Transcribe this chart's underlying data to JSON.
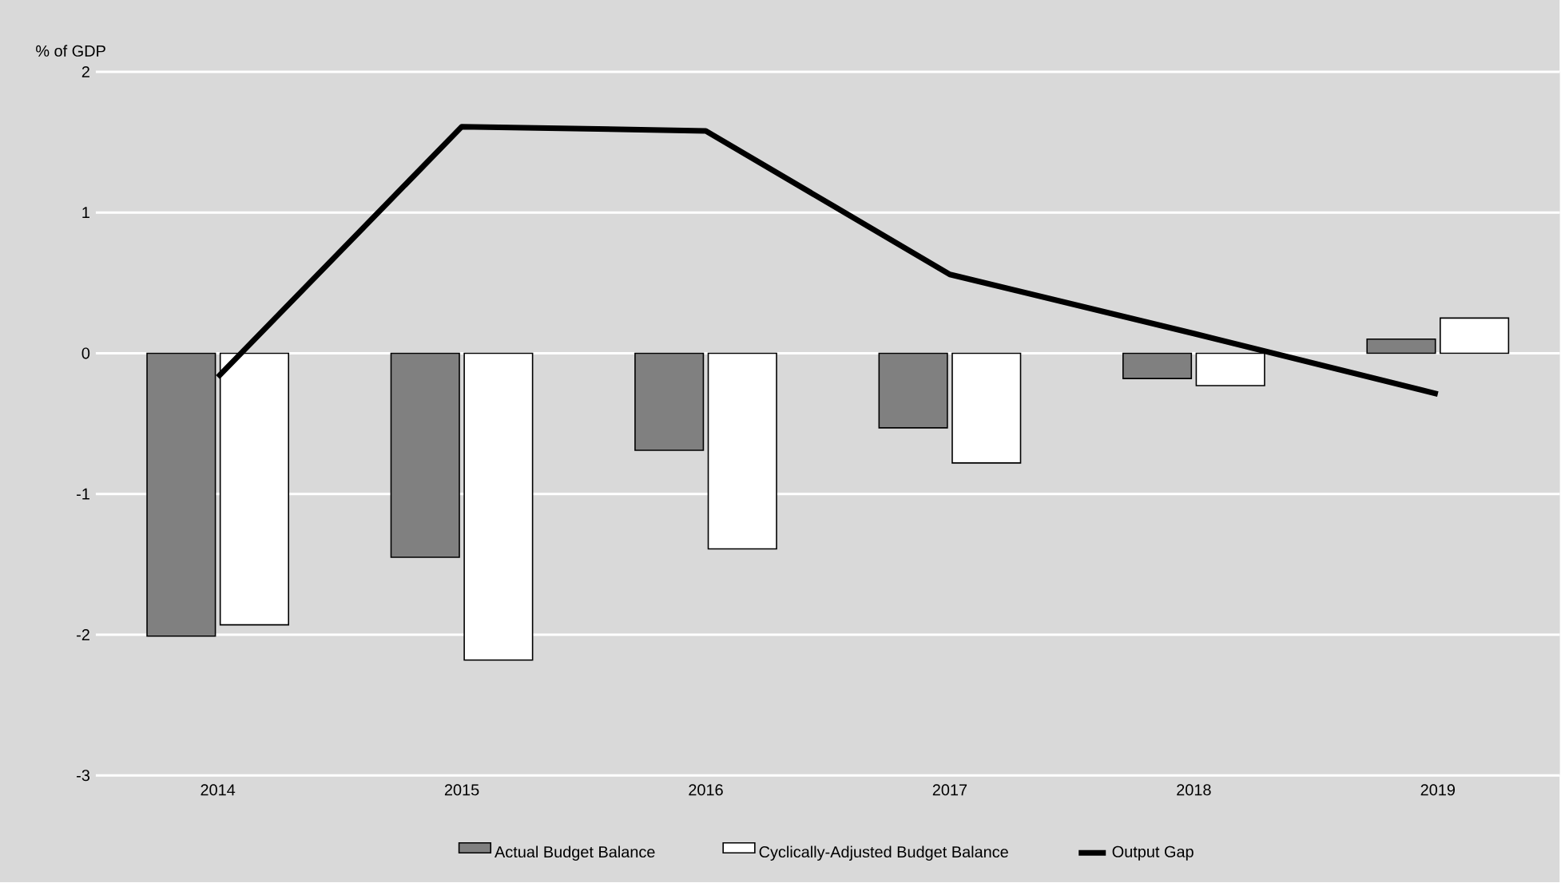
{
  "chart_data": {
    "type": "bar",
    "ylabel": "% of GDP",
    "categories": [
      "2014",
      "2015",
      "2016",
      "2017",
      "2018",
      "2019"
    ],
    "series": [
      {
        "name": "Actual Budget Balance",
        "color": "#808080",
        "values": [
          -2.01,
          -1.45,
          -0.69,
          -0.53,
          -0.18,
          0.1
        ]
      },
      {
        "name": "Cyclically-Adjusted Budget Balance",
        "color": "#ffffff",
        "values": [
          -1.93,
          -2.18,
          -1.39,
          -0.78,
          -0.23,
          0.25
        ]
      },
      {
        "name": "Output Gap",
        "type": "line",
        "color": "#000000",
        "values": [
          -0.17,
          1.61,
          1.58,
          0.56,
          0.14,
          -0.29
        ]
      }
    ],
    "ylim": [
      -3,
      2
    ],
    "yticks": [
      -3,
      -2,
      -1,
      0,
      1,
      2
    ],
    "grid": "y",
    "legend": "bottom"
  }
}
